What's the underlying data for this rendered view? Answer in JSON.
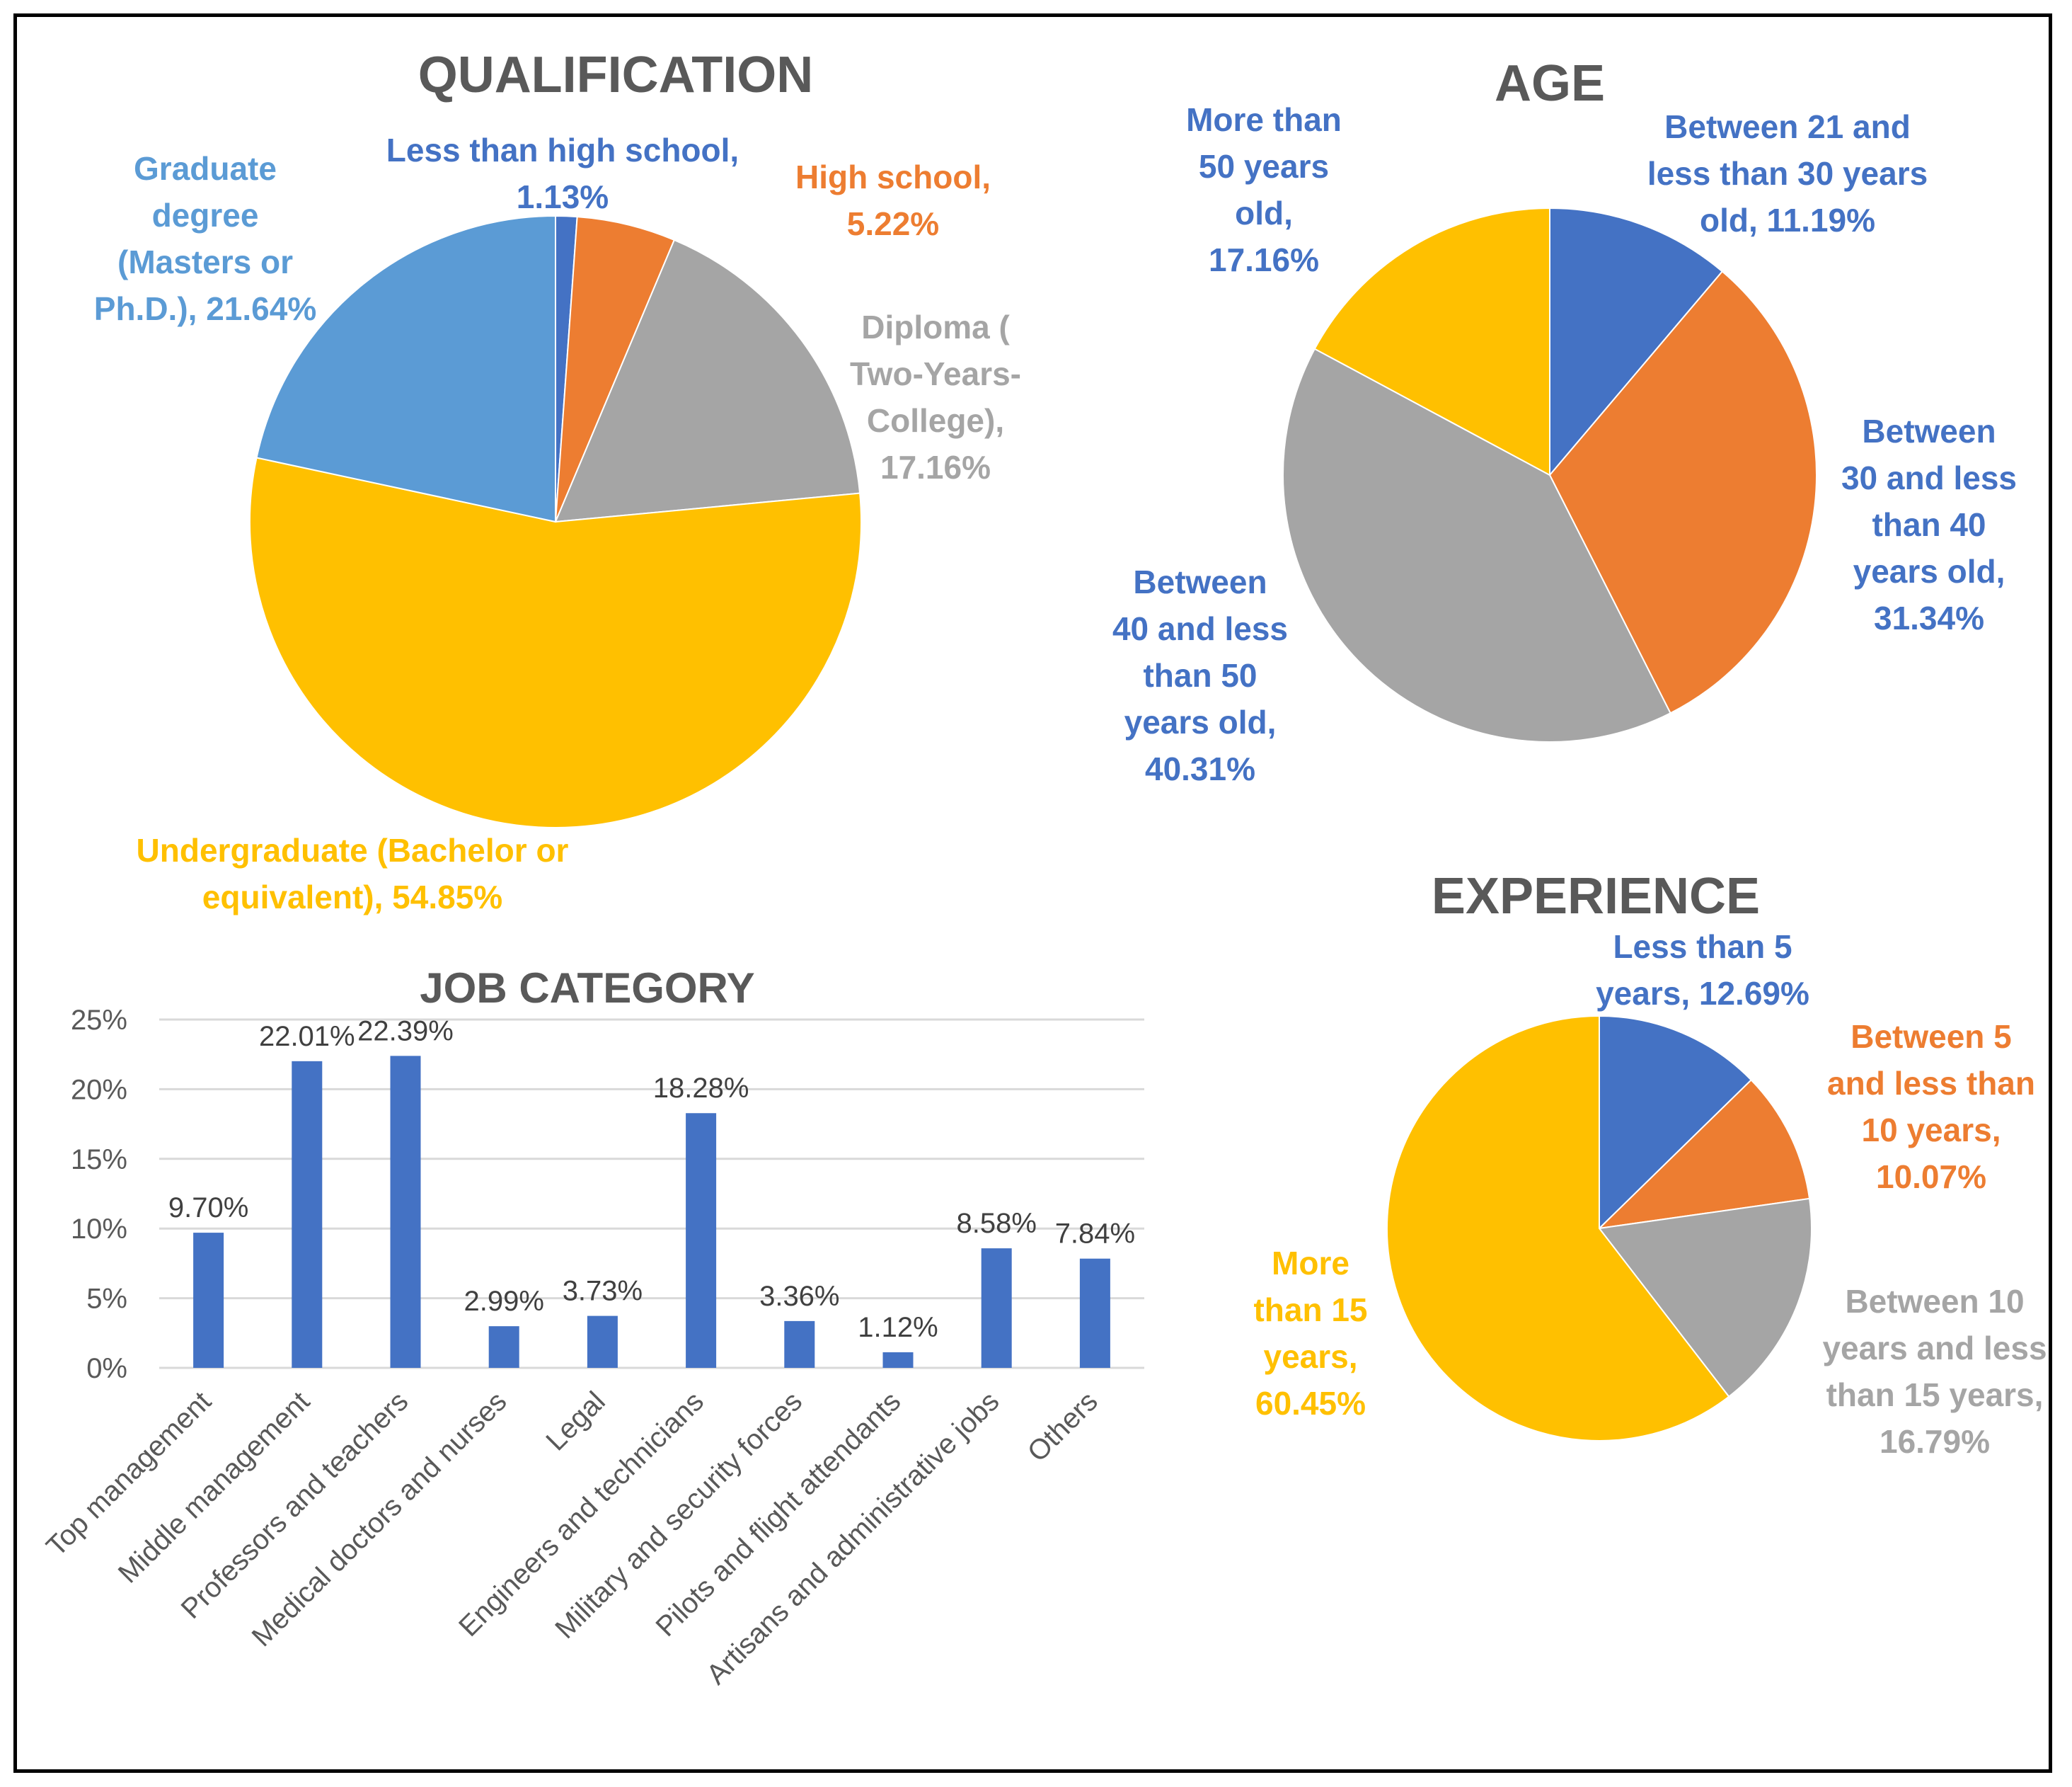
{
  "colors": {
    "blue": "#4472C4",
    "orange": "#ED7D31",
    "gray": "#A5A5A5",
    "gold": "#FFC000",
    "light_blue": "#5B9BD5",
    "title": "#595959",
    "gridline": "#D9D9D9"
  },
  "chart_data": [
    {
      "id": "qualification",
      "type": "pie",
      "title": "QUALIFICATION",
      "slices": [
        {
          "label": "Less than high school,",
          "value_label": "1.13%",
          "value": 1.13,
          "color": "#4472C4"
        },
        {
          "label": "High school,",
          "value_label": "5.22%",
          "value": 5.22,
          "color": "#ED7D31"
        },
        {
          "label": "Diploma ( Two-Years-College),",
          "value_label": "17.16%",
          "value": 17.16,
          "color": "#A5A5A5"
        },
        {
          "label": "Undergraduate (Bachelor or equivalent),",
          "value_label": "54.85%",
          "value": 54.85,
          "color": "#FFC000"
        },
        {
          "label": "Graduate degree (Masters or Ph.D.),",
          "value_label": "21.64%",
          "value": 21.64,
          "color": "#5B9BD5"
        }
      ]
    },
    {
      "id": "age",
      "type": "pie",
      "title": "AGE",
      "slices": [
        {
          "label": "Between 21 and less than 30 years old,",
          "value_label": "11.19%",
          "value": 11.19,
          "color": "#4472C4"
        },
        {
          "label": "Between 30 and less than 40 years old,",
          "value_label": "31.34%",
          "value": 31.34,
          "color": "#ED7D31"
        },
        {
          "label": "Between 40 and less than 50 years old,",
          "value_label": "40.31%",
          "value": 40.31,
          "color": "#A5A5A5"
        },
        {
          "label": "More than 50 years old,",
          "value_label": "17.16%",
          "value": 17.16,
          "color": "#FFC000"
        }
      ]
    },
    {
      "id": "experience",
      "type": "pie",
      "title": "EXPERIENCE",
      "slices": [
        {
          "label": "Less than 5 years,",
          "value_label": "12.69%",
          "value": 12.69,
          "color": "#4472C4"
        },
        {
          "label": "Between 5 and less than 10 years,",
          "value_label": "10.07%",
          "value": 10.07,
          "color": "#ED7D31"
        },
        {
          "label": "Between 10 years and less than 15 years,",
          "value_label": "16.79%",
          "value": 16.79,
          "color": "#A5A5A5"
        },
        {
          "label": "More than 15 years,",
          "value_label": "60.45%",
          "value": 60.45,
          "color": "#FFC000"
        }
      ]
    },
    {
      "id": "job_category",
      "type": "bar",
      "title": "JOB CATEGORY",
      "categories": [
        "Top management",
        "Middle management",
        "Professors and teachers",
        "Medical doctors and nurses",
        "Legal",
        "Engineers and technicians",
        "Military and security forces",
        "Pilots and flight attendants",
        "Artisans and administrative jobs",
        "Others"
      ],
      "values": [
        9.7,
        22.01,
        22.39,
        2.99,
        3.73,
        18.28,
        3.36,
        1.12,
        8.58,
        7.84
      ],
      "value_labels": [
        "9.70%",
        "22.01%",
        "22.39%",
        "2.99%",
        "3.73%",
        "18.28%",
        "3.36%",
        "1.12%",
        "8.58%",
        "7.84%"
      ],
      "yticks": [
        0,
        5,
        10,
        15,
        20,
        25
      ],
      "ytick_labels": [
        "0%",
        "5%",
        "10%",
        "15%",
        "20%",
        "25%"
      ],
      "ylim": [
        0,
        25
      ],
      "color": "#4472C4",
      "grid": true,
      "xlabel": "",
      "ylabel": ""
    }
  ]
}
